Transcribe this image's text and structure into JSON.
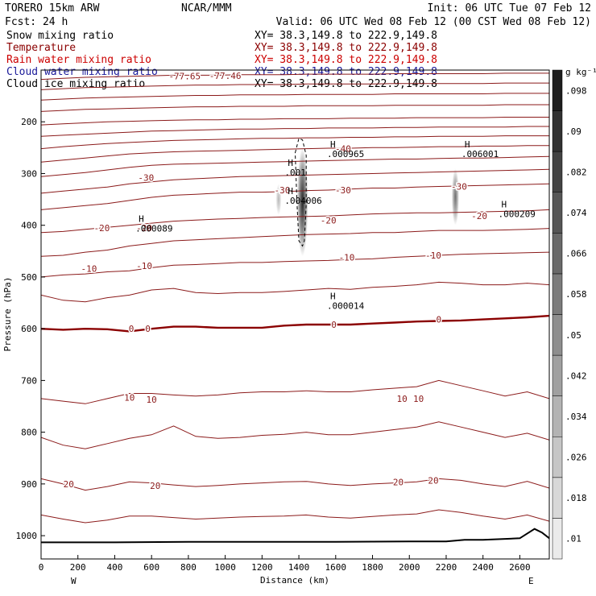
{
  "header": {
    "model": "TORERO  15km ARW",
    "center": "NCAR/MMM",
    "init": "Init: 06 UTC Tue 07 Feb 12",
    "fcst": "Fcst:    24 h",
    "valid": "Valid: 06 UTC Wed 08 Feb 12 (00 CST Wed 08 Feb 12)"
  },
  "fields": [
    {
      "name": "Snow mixing ratio",
      "xy": "XY=  38.3,149.8 to 222.9,149.8",
      "color": "#000000"
    },
    {
      "name": "Temperature",
      "xy": "XY=  38.3,149.8 to 222.9,149.8",
      "color": "#8b0000"
    },
    {
      "name": "Rain water mixing ratio",
      "xy": "XY=  38.3,149.8 to 222.9,149.8",
      "color": "#cc0000"
    },
    {
      "name": "Cloud water mixing ratio",
      "xy": "XY=  38.3,149.8 to 222.9,149.8",
      "color": "#1a1a99"
    },
    {
      "name": "Cloud ice mixing ratio",
      "xy": "XY=  38.3,149.8 to 222.9,149.8",
      "color": "#000000"
    }
  ],
  "colors": {
    "temperature": "#8b1a1a",
    "freezing": "#8b0000",
    "axes": "#000000",
    "snow_shade": "#333333"
  },
  "chart_data": {
    "type": "cross-section",
    "xlabel": "Distance (km)",
    "ylabel": "Pressure (hPa)",
    "xlim": [
      0,
      2760
    ],
    "ylim": [
      1045,
      100
    ],
    "x_ticks": [
      0,
      200,
      400,
      600,
      800,
      1000,
      1200,
      1400,
      1600,
      1800,
      2000,
      2200,
      2400,
      2600
    ],
    "y_ticks": [
      200,
      300,
      400,
      500,
      600,
      700,
      800,
      900,
      1000
    ],
    "x_end_labels": {
      "left": "W",
      "right": "E"
    },
    "colorbar": {
      "unit": "g kg⁻¹",
      "levels": [
        0.01,
        0.018,
        0.026,
        0.034,
        0.042,
        0.05,
        0.058,
        0.066,
        0.074,
        0.082,
        0.09,
        0.098
      ],
      "tick_labels": [
        ".01",
        ".018",
        ".026",
        ".034",
        ".042",
        ".05",
        ".058",
        ".066",
        ".074",
        ".082",
        ".09",
        ".098"
      ]
    },
    "isotherms": [
      {
        "t": 20,
        "p": [
          890,
          900,
          912,
          905,
          896,
          898,
          902,
          905,
          903,
          900,
          898,
          896,
          895,
          900,
          903,
          900,
          898,
          896,
          890,
          893,
          900,
          905,
          895,
          908
        ]
      },
      {
        "t": 15,
        "p": [
          960,
          968,
          975,
          970,
          962,
          962,
          965,
          968,
          966,
          964,
          963,
          962,
          960,
          964,
          966,
          963,
          960,
          958,
          950,
          955,
          962,
          968,
          960,
          972
        ]
      },
      {
        "t": 10,
        "p": [
          735,
          740,
          745,
          735,
          725,
          725,
          728,
          730,
          728,
          724,
          722,
          722,
          720,
          722,
          722,
          718,
          715,
          712,
          700,
          710,
          720,
          730,
          722,
          735
        ]
      },
      {
        "t": 5,
        "p": [
          810,
          825,
          832,
          822,
          812,
          805,
          788,
          808,
          812,
          810,
          806,
          804,
          800,
          805,
          805,
          800,
          795,
          790,
          780,
          790,
          800,
          810,
          802,
          815
        ]
      },
      {
        "t": 0,
        "p": [
          600,
          602,
          600,
          601,
          605,
          600,
          596,
          596,
          598,
          598,
          598,
          594,
          592,
          592,
          592,
          590,
          588,
          586,
          585,
          584,
          582,
          580,
          578,
          575
        ]
      },
      {
        "t": -5,
        "p": [
          535,
          545,
          548,
          540,
          535,
          525,
          522,
          530,
          532,
          530,
          530,
          528,
          525,
          522,
          524,
          520,
          518,
          515,
          510,
          512,
          515,
          515,
          512,
          515
        ]
      },
      {
        "t": -10,
        "p": [
          500,
          496,
          494,
          490,
          488,
          482,
          477,
          476,
          474,
          472,
          472,
          470,
          469,
          468,
          466,
          465,
          462,
          460,
          458,
          456,
          455,
          454,
          453,
          452
        ]
      },
      {
        "t": -15,
        "p": [
          460,
          458,
          452,
          448,
          440,
          435,
          430,
          428,
          426,
          424,
          422,
          420,
          418,
          417,
          416,
          414,
          414,
          412,
          410,
          410,
          410,
          409,
          408,
          406
        ]
      },
      {
        "t": -20,
        "p": [
          414,
          412,
          408,
          404,
          400,
          396,
          392,
          390,
          388,
          387,
          385,
          384,
          383,
          382,
          380,
          378,
          377,
          376,
          376,
          375,
          374,
          373,
          372,
          370
        ]
      },
      {
        "t": -25,
        "p": [
          370,
          366,
          362,
          358,
          352,
          346,
          342,
          340,
          338,
          336,
          336,
          335,
          333,
          332,
          330,
          328,
          328,
          326,
          325,
          324,
          323,
          322,
          321,
          320
        ]
      },
      {
        "t": -30,
        "p": [
          338,
          334,
          330,
          326,
          320,
          316,
          312,
          310,
          308,
          306,
          305,
          304,
          303,
          302,
          301,
          300,
          299,
          298,
          297,
          296,
          295,
          294,
          293,
          292
        ]
      },
      {
        "t": -35,
        "p": [
          306,
          302,
          298,
          293,
          288,
          284,
          282,
          281,
          280,
          279,
          278,
          277,
          276,
          275,
          274,
          273,
          272,
          272,
          271,
          270,
          270,
          269,
          268,
          267
        ]
      },
      {
        "t": -40,
        "p": [
          278,
          274,
          270,
          266,
          262,
          260,
          258,
          257,
          256,
          255,
          254,
          253,
          252,
          251,
          251,
          250,
          250,
          249,
          248,
          248,
          247,
          247,
          246,
          246
        ]
      },
      {
        "t": -45,
        "p": [
          252,
          248,
          245,
          242,
          240,
          238,
          236,
          235,
          234,
          233,
          232,
          232,
          231,
          231,
          230,
          230,
          229,
          229,
          228,
          228,
          228,
          227,
          227,
          227
        ]
      },
      {
        "t": -50,
        "p": [
          228,
          226,
          224,
          222,
          220,
          218,
          217,
          216,
          215,
          214,
          214,
          213,
          213,
          212,
          212,
          212,
          211,
          211,
          210,
          210,
          210,
          210,
          209,
          209
        ]
      },
      {
        "t": -55,
        "p": [
          206,
          204,
          202,
          200,
          199,
          198,
          197,
          196,
          196,
          195,
          195,
          194,
          194,
          194,
          193,
          193,
          193,
          192,
          192,
          192,
          192,
          191,
          191,
          191
        ]
      },
      {
        "t": -60,
        "p": [
          180,
          178,
          176,
          175,
          174,
          173,
          172,
          171,
          171,
          170,
          170,
          170,
          169,
          169,
          169,
          169,
          168,
          168,
          168,
          168,
          168,
          167,
          167,
          167
        ]
      },
      {
        "t": -65,
        "p": [
          158,
          156,
          154,
          153,
          152,
          151,
          150,
          149,
          149,
          148,
          148,
          148,
          147,
          147,
          147,
          147,
          146,
          146,
          146,
          146,
          146,
          145,
          145,
          145
        ]
      },
      {
        "t": -70,
        "p": [
          138,
          136,
          134,
          133,
          132,
          131,
          130,
          129,
          129,
          128,
          128,
          128,
          127,
          127,
          127,
          127,
          126,
          126,
          126,
          126,
          126,
          125,
          125,
          125
        ]
      },
      {
        "t": -75,
        "p": [
          118,
          116,
          114,
          113,
          112,
          111,
          110,
          110,
          110,
          109,
          109,
          109,
          108,
          108,
          108,
          108,
          107,
          107,
          107,
          107,
          107,
          106,
          106,
          106
        ]
      }
    ],
    "isotherm_x": [
      0,
      120,
      240,
      360,
      480,
      600,
      720,
      840,
      960,
      1080,
      1200,
      1320,
      1440,
      1560,
      1680,
      1800,
      1920,
      2040,
      2160,
      2280,
      2400,
      2520,
      2640,
      2760
    ],
    "contour_labels": [
      {
        "text": "-77.65",
        "x": 780,
        "p": 112
      },
      {
        "text": "-77.46",
        "x": 1000,
        "p": 111
      },
      {
        "text": "-40",
        "x": 1640,
        "p": 252
      },
      {
        "text": "-30",
        "x": 570,
        "p": 308
      },
      {
        "text": "-30",
        "x": 1310,
        "p": 332
      },
      {
        "text": "-30",
        "x": 1640,
        "p": 332
      },
      {
        "text": "-30",
        "x": 2270,
        "p": 325
      },
      {
        "text": "-20",
        "x": 330,
        "p": 405
      },
      {
        "text": "-20",
        "x": 1560,
        "p": 390
      },
      {
        "text": "-20",
        "x": 2380,
        "p": 382
      },
      {
        "text": "-20",
        "x": 560,
        "p": 405
      },
      {
        "text": "-10",
        "x": 260,
        "p": 484
      },
      {
        "text": "-10",
        "x": 560,
        "p": 478
      },
      {
        "text": "-10",
        "x": 1660,
        "p": 462
      },
      {
        "text": "-10",
        "x": 2130,
        "p": 458
      },
      {
        "text": "0",
        "x": 490,
        "p": 600
      },
      {
        "text": "0",
        "x": 580,
        "p": 600
      },
      {
        "text": "0",
        "x": 1590,
        "p": 592
      },
      {
        "text": "0",
        "x": 2160,
        "p": 582
      },
      {
        "text": "10",
        "x": 480,
        "p": 733
      },
      {
        "text": "10",
        "x": 600,
        "p": 737
      },
      {
        "text": "10",
        "x": 1960,
        "p": 735
      },
      {
        "text": "10",
        "x": 2050,
        "p": 735
      },
      {
        "text": "20",
        "x": 150,
        "p": 900
      },
      {
        "text": "20",
        "x": 620,
        "p": 903
      },
      {
        "text": "20",
        "x": 1940,
        "p": 896
      },
      {
        "text": "20",
        "x": 2130,
        "p": 893
      }
    ],
    "extrema": [
      {
        "mark": "H",
        "value": ".000965",
        "x": 1570,
        "p": 262
      },
      {
        "mark": "H",
        "value": ".006001",
        "x": 2300,
        "p": 262
      },
      {
        "mark": "H",
        "value": ".001",
        "x": 1340,
        "p": 298
      },
      {
        "mark": "H",
        "value": ".004006",
        "x": 1340,
        "p": 352
      },
      {
        "mark": "H",
        "value": ".000209",
        "x": 2500,
        "p": 378
      },
      {
        "mark": "H",
        "value": ".000089",
        "x": 530,
        "p": 406
      },
      {
        "mark": "H",
        "value": ".000014",
        "x": 1570,
        "p": 555
      }
    ],
    "snow_plumes": [
      {
        "x": 1420,
        "p_top": 250,
        "p_bottom": 460,
        "width": 60,
        "peak": 0.09
      },
      {
        "x": 2250,
        "p_top": 290,
        "p_bottom": 400,
        "width": 40,
        "peak": 0.06
      },
      {
        "x": 1290,
        "p_top": 320,
        "p_bottom": 380,
        "width": 30,
        "peak": 0.03
      }
    ],
    "ice_contour": {
      "x": [
        1380,
        1400,
        1420,
        1440,
        1440,
        1430,
        1420,
        1400,
        1390,
        1380
      ],
      "p": [
        260,
        232,
        235,
        265,
        360,
        430,
        440,
        430,
        360,
        260
      ]
    },
    "terrain": {
      "x": [
        0,
        400,
        800,
        1200,
        1600,
        2000,
        2200,
        2300,
        2400,
        2600,
        2680,
        2720,
        2760
      ],
      "p": [
        1013,
        1013,
        1012,
        1012,
        1012,
        1011,
        1011,
        1008,
        1008,
        1005,
        987,
        994,
        1005
      ]
    }
  }
}
